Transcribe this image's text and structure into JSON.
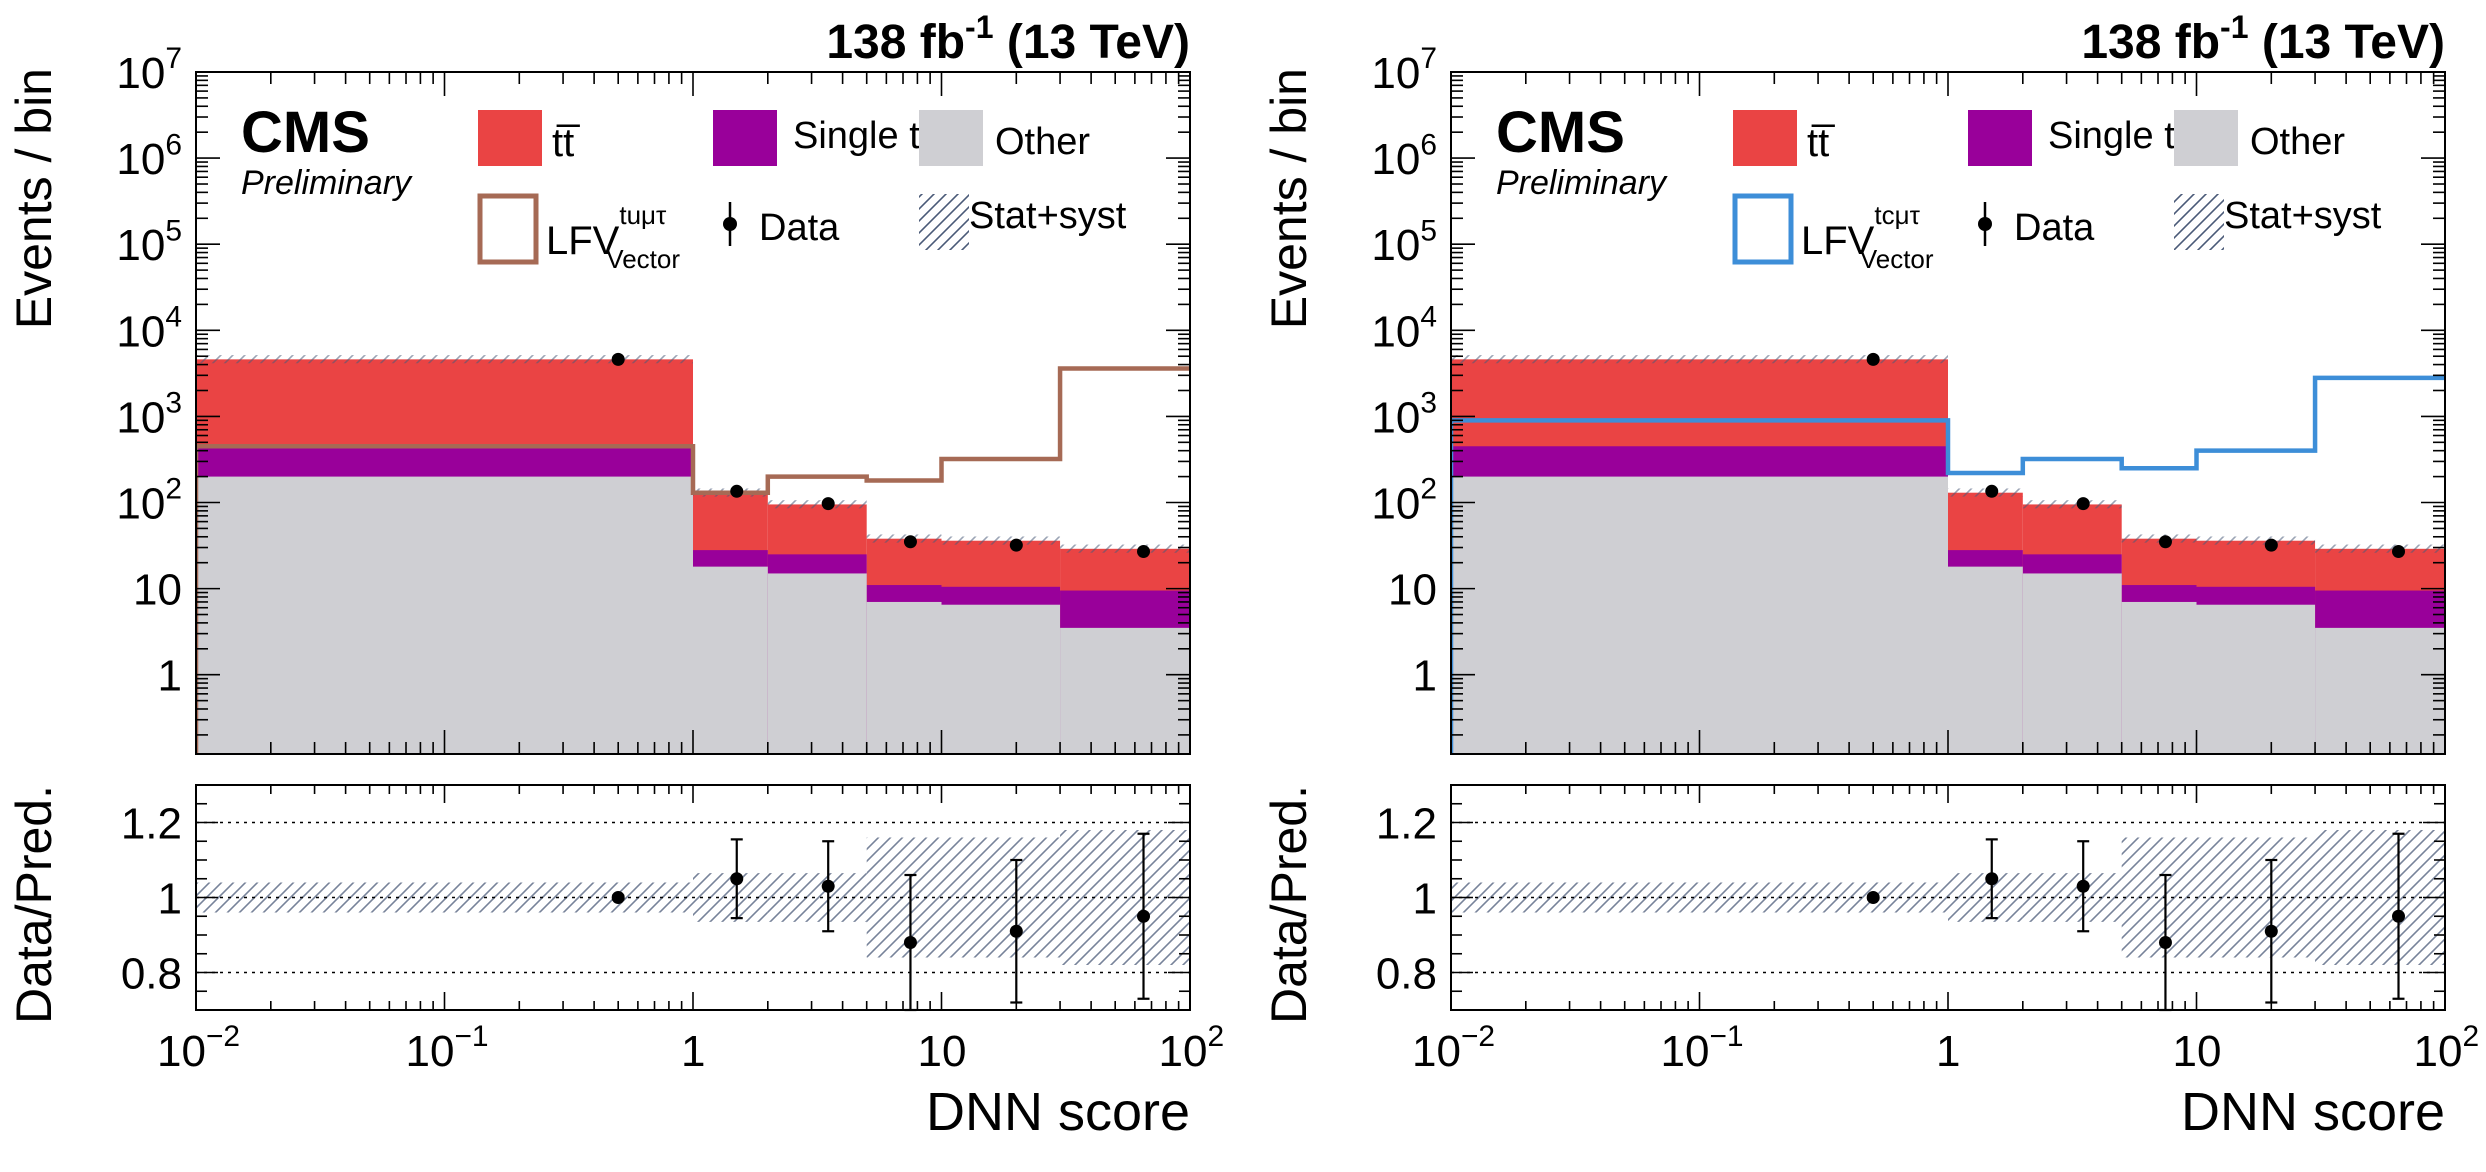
{
  "chart_data": [
    {
      "type": "bar",
      "id": "left",
      "lumi_label": "138 fb",
      "lumi_exp": "-1",
      "energy_label": " (13 TeV)",
      "experiment": "CMS",
      "status": "Preliminary",
      "ylabel": "Events / bin",
      "ratio_ylabel": "Data/Pred.",
      "xlabel": "DNN score",
      "xscale": "log",
      "xlim": [
        0.01,
        100
      ],
      "ylim": [
        0.12,
        10000000
      ],
      "ratio_ylim": [
        0.7,
        1.3
      ],
      "x_ticks": [
        {
          "base": "10",
          "exp": "−2"
        },
        {
          "base": "10",
          "exp": "−1"
        },
        {
          "base": "1",
          "exp": ""
        },
        {
          "base": "10",
          "exp": ""
        },
        {
          "base": "10",
          "exp": "2"
        }
      ],
      "y_ticks": [
        {
          "base": "1",
          "exp": ""
        },
        {
          "base": "10",
          "exp": ""
        },
        {
          "base": "10",
          "exp": "2"
        },
        {
          "base": "10",
          "exp": "3"
        },
        {
          "base": "10",
          "exp": "4"
        },
        {
          "base": "10",
          "exp": "5"
        },
        {
          "base": "10",
          "exp": "6"
        },
        {
          "base": "10",
          "exp": "7"
        }
      ],
      "ratio_ticks": [
        "0.8",
        "1",
        "1.2"
      ],
      "bin_edges": [
        0.01,
        1,
        2,
        5,
        10,
        30,
        100
      ],
      "stack": [
        {
          "name": "Other",
          "color": "#cfcfd3",
          "values": [
            200,
            18,
            15,
            7,
            6.5,
            3.5
          ]
        },
        {
          "name": "Single t",
          "color": "#99009a",
          "values": [
            450,
            28,
            25,
            11,
            10.5,
            9.5
          ]
        },
        {
          "name": "t̅t̅",
          "label_main": "t",
          "label_bar": "t",
          "color": "#ea4444",
          "values": [
            4600,
            130,
            95,
            38,
            36,
            29
          ]
        }
      ],
      "signal": {
        "name": "LFV",
        "sub": "Vector",
        "sup": "tuμτ",
        "color": "#a66a55",
        "values": [
          450,
          130,
          200,
          180,
          320,
          3600
        ]
      },
      "data_points": [
        {
          "x": 0.5,
          "y": 4600
        },
        {
          "x": 1.5,
          "y": 135
        },
        {
          "x": 3.5,
          "y": 97
        },
        {
          "x": 7.5,
          "y": 35
        },
        {
          "x": 20,
          "y": 32
        },
        {
          "x": 65,
          "y": 27
        }
      ],
      "ratio_points": [
        {
          "x": 0.5,
          "y": 1.0,
          "err": 0.005
        },
        {
          "x": 1.5,
          "y": 1.05,
          "err": 0.105
        },
        {
          "x": 3.5,
          "y": 1.03,
          "err": 0.12
        },
        {
          "x": 7.5,
          "y": 0.88,
          "err": 0.18
        },
        {
          "x": 20,
          "y": 0.91,
          "err": 0.19
        },
        {
          "x": 65,
          "y": 0.95,
          "err": 0.22
        }
      ],
      "ratio_band": [
        0.04,
        0.065,
        0.065,
        0.16,
        0.16,
        0.18
      ],
      "legend": {
        "ttbar": "t̄t",
        "single_t": "Single t",
        "other": "Other",
        "signal": "LFV",
        "signal_sub": "Vector",
        "signal_sup": "tuμτ",
        "data": "Data",
        "unc": "Stat+syst"
      }
    },
    {
      "type": "bar",
      "id": "right",
      "lumi_label": "138 fb",
      "lumi_exp": "-1",
      "energy_label": " (13 TeV)",
      "experiment": "CMS",
      "status": "Preliminary",
      "ylabel": "Events / bin",
      "ratio_ylabel": "Data/Pred.",
      "xlabel": "DNN score",
      "xscale": "log",
      "xlim": [
        0.01,
        100
      ],
      "ylim": [
        0.12,
        10000000
      ],
      "ratio_ylim": [
        0.7,
        1.3
      ],
      "x_ticks": [
        {
          "base": "10",
          "exp": "−2"
        },
        {
          "base": "10",
          "exp": "−1"
        },
        {
          "base": "1",
          "exp": ""
        },
        {
          "base": "10",
          "exp": ""
        },
        {
          "base": "10",
          "exp": "2"
        }
      ],
      "y_ticks": [
        {
          "base": "1",
          "exp": ""
        },
        {
          "base": "10",
          "exp": ""
        },
        {
          "base": "10",
          "exp": "2"
        },
        {
          "base": "10",
          "exp": "3"
        },
        {
          "base": "10",
          "exp": "4"
        },
        {
          "base": "10",
          "exp": "5"
        },
        {
          "base": "10",
          "exp": "6"
        },
        {
          "base": "10",
          "exp": "7"
        }
      ],
      "ratio_ticks": [
        "0.8",
        "1",
        "1.2"
      ],
      "bin_edges": [
        0.01,
        1,
        2,
        5,
        10,
        30,
        100
      ],
      "stack": [
        {
          "name": "Other",
          "color": "#cfcfd3",
          "values": [
            200,
            18,
            15,
            7,
            6.5,
            3.5
          ]
        },
        {
          "name": "Single t",
          "color": "#99009a",
          "values": [
            450,
            28,
            25,
            11,
            10.5,
            9.5
          ]
        },
        {
          "name": "t̅t̅",
          "label_main": "t",
          "label_bar": "t",
          "color": "#ea4444",
          "values": [
            4600,
            130,
            95,
            38,
            36,
            29
          ]
        }
      ],
      "signal": {
        "name": "LFV",
        "sub": "Vector",
        "sup": "tcμτ",
        "color": "#3d8ed8",
        "values": [
          900,
          220,
          320,
          250,
          400,
          2800
        ]
      },
      "data_points": [
        {
          "x": 0.5,
          "y": 4600
        },
        {
          "x": 1.5,
          "y": 135
        },
        {
          "x": 3.5,
          "y": 97
        },
        {
          "x": 7.5,
          "y": 35
        },
        {
          "x": 20,
          "y": 32
        },
        {
          "x": 65,
          "y": 27
        }
      ],
      "ratio_points": [
        {
          "x": 0.5,
          "y": 1.0,
          "err": 0.005
        },
        {
          "x": 1.5,
          "y": 1.05,
          "err": 0.105
        },
        {
          "x": 3.5,
          "y": 1.03,
          "err": 0.12
        },
        {
          "x": 7.5,
          "y": 0.88,
          "err": 0.18
        },
        {
          "x": 20,
          "y": 0.91,
          "err": 0.19
        },
        {
          "x": 65,
          "y": 0.95,
          "err": 0.22
        }
      ],
      "ratio_band": [
        0.04,
        0.065,
        0.065,
        0.16,
        0.16,
        0.18
      ],
      "legend": {
        "ttbar": "t̄t",
        "single_t": "Single t",
        "other": "Other",
        "signal": "LFV",
        "signal_sub": "Vector",
        "signal_sup": "tcμτ",
        "data": "Data",
        "unc": "Stat+syst"
      }
    }
  ]
}
